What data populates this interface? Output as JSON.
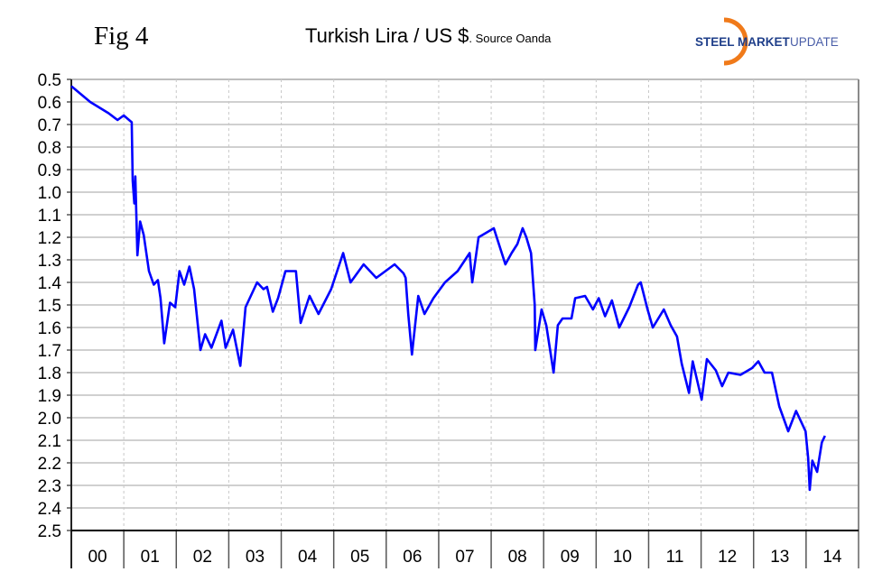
{
  "figure_label": "Fig 4",
  "logo": {
    "text_bold": "STEEL MARKET",
    "text_light": "UPDATE"
  },
  "chart_data": {
    "type": "line",
    "title": "Turkish Lira / US $",
    "subtitle": ". Source Oanda",
    "xlabel": "",
    "ylabel": "",
    "ylim": [
      0.5,
      2.5
    ],
    "y_inverted": true,
    "yticks": [
      "0.5",
      "0.6",
      "0.7",
      "0.8",
      "0.9",
      "1.0",
      "1.1",
      "1.2",
      "1.3",
      "1.4",
      "1.5",
      "1.6",
      "1.7",
      "1.8",
      "1.9",
      "2.0",
      "2.1",
      "2.2",
      "2.3",
      "2.4",
      "2.5"
    ],
    "categories": [
      "00",
      "01",
      "02",
      "03",
      "04",
      "05",
      "06",
      "07",
      "08",
      "09",
      "10",
      "11",
      "12",
      "13",
      "14"
    ],
    "xlim": [
      2000.0,
      2015.0
    ],
    "grid": true,
    "line_color": "#0000ff",
    "series": [
      {
        "x": [
          2000.0,
          2000.36,
          2000.71,
          2000.88,
          2001.0,
          2001.15,
          2001.17,
          2001.2,
          2001.22,
          2001.26,
          2001.31,
          2001.38,
          2001.48,
          2001.57,
          2001.65,
          2001.7,
          2001.77,
          2001.88,
          2001.98,
          2002.06,
          2002.15,
          2002.25,
          2002.34,
          2002.46,
          2002.55,
          2002.67,
          2002.86,
          2002.94,
          2003.08,
          2003.22,
          2003.32,
          2003.54,
          2003.66,
          2003.73,
          2003.84,
          2003.94,
          2004.08,
          2004.28,
          2004.37,
          2004.54,
          2004.71,
          2004.95,
          2005.18,
          2005.32,
          2005.57,
          2005.81,
          2006.16,
          2006.33,
          2006.37,
          2006.42,
          2006.49,
          2006.61,
          2006.73,
          2006.9,
          2007.12,
          2007.36,
          2007.59,
          2007.64,
          2007.76,
          2008.05,
          2008.27,
          2008.39,
          2008.5,
          2008.6,
          2008.67,
          2008.76,
          2008.83,
          2008.84,
          2008.96,
          2009.05,
          2009.19,
          2009.27,
          2009.36,
          2009.53,
          2009.6,
          2009.79,
          2009.94,
          2010.05,
          2010.17,
          2010.3,
          2010.44,
          2010.63,
          2010.8,
          2010.85,
          2010.98,
          2011.08,
          2011.29,
          2011.42,
          2011.54,
          2011.63,
          2011.77,
          2011.84,
          2012.01,
          2012.11,
          2012.28,
          2012.4,
          2012.52,
          2012.75,
          2012.97,
          2013.09,
          2013.21,
          2013.35,
          2013.49,
          2013.66,
          2013.81,
          2013.99,
          2014.04,
          2014.07,
          2014.12,
          2014.21,
          2014.3,
          2014.36
        ],
        "y": [
          0.53,
          0.6,
          0.65,
          0.68,
          0.66,
          0.69,
          0.95,
          1.05,
          0.93,
          1.28,
          1.13,
          1.19,
          1.35,
          1.41,
          1.39,
          1.47,
          1.67,
          1.49,
          1.51,
          1.35,
          1.41,
          1.33,
          1.43,
          1.7,
          1.63,
          1.69,
          1.57,
          1.69,
          1.61,
          1.77,
          1.51,
          1.4,
          1.43,
          1.42,
          1.53,
          1.47,
          1.35,
          1.35,
          1.58,
          1.46,
          1.54,
          1.43,
          1.27,
          1.4,
          1.32,
          1.38,
          1.32,
          1.36,
          1.38,
          1.54,
          1.72,
          1.46,
          1.54,
          1.47,
          1.4,
          1.35,
          1.27,
          1.4,
          1.2,
          1.16,
          1.32,
          1.27,
          1.23,
          1.16,
          1.2,
          1.27,
          1.5,
          1.7,
          1.52,
          1.59,
          1.8,
          1.59,
          1.56,
          1.56,
          1.47,
          1.46,
          1.52,
          1.47,
          1.55,
          1.48,
          1.6,
          1.51,
          1.41,
          1.4,
          1.52,
          1.6,
          1.52,
          1.59,
          1.64,
          1.76,
          1.89,
          1.75,
          1.92,
          1.74,
          1.79,
          1.86,
          1.8,
          1.81,
          1.78,
          1.75,
          1.8,
          1.8,
          1.95,
          2.06,
          1.97,
          2.06,
          2.18,
          2.32,
          2.19,
          2.24,
          2.11,
          2.08
        ]
      }
    ]
  }
}
